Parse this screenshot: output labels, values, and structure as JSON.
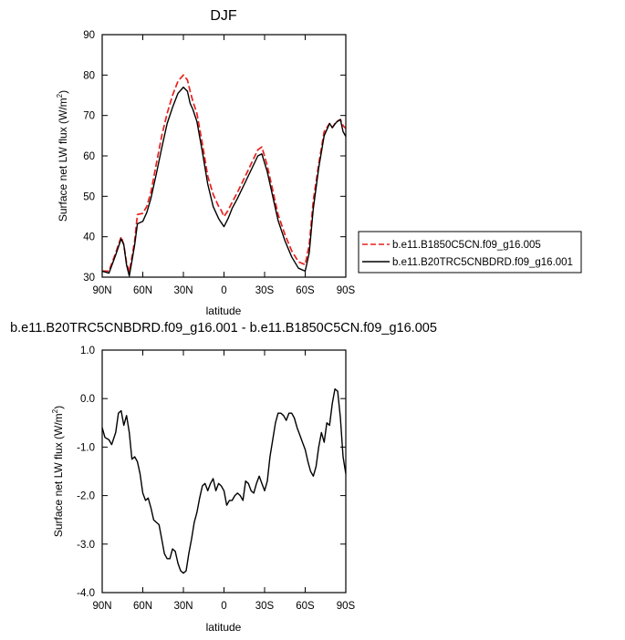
{
  "chart_data": [
    {
      "type": "line",
      "title": "DJF",
      "xlabel": "latitude",
      "ylabel": "Surface net LW flux (W/m",
      "ylabel_sup": "2",
      "ylabel_close": ")",
      "xlim": [
        90,
        -90
      ],
      "ylim": [
        30,
        90
      ],
      "x_tick_values": [
        90,
        60,
        30,
        0,
        -30,
        -60,
        -90
      ],
      "x_tick_labels": [
        "90N",
        "60N",
        "30N",
        "0",
        "30S",
        "60S",
        "90S"
      ],
      "y_tick_values": [
        30,
        40,
        50,
        60,
        70,
        80,
        90
      ],
      "y_tick_labels": [
        "30",
        "40",
        "50",
        "60",
        "70",
        "80",
        "90"
      ],
      "legend": "outside-right",
      "x": [
        90,
        85,
        80,
        76,
        74,
        72,
        70,
        68,
        66,
        64,
        60,
        57,
        54,
        50,
        46,
        42,
        38,
        34,
        30,
        27,
        25,
        23,
        20,
        16,
        12,
        8,
        4,
        2,
        0,
        -3,
        -6,
        -10,
        -15,
        -20,
        -25,
        -28,
        -32,
        -36,
        -40,
        -45,
        -50,
        -55,
        -60,
        -63,
        -66,
        -70,
        -74,
        -78,
        -80,
        -83,
        -86,
        -88,
        -90
      ],
      "series": [
        {
          "name": "b.e11.B1850C5CN.f09_g16.005",
          "color": "#e8201d",
          "dash": true,
          "values": [
            31.5,
            31.5,
            36,
            40,
            38,
            33.5,
            31.3,
            35,
            39,
            45.5,
            45.8,
            47.5,
            51,
            58,
            65,
            70.5,
            75,
            78.5,
            80,
            78.8,
            76,
            73.5,
            70.5,
            63,
            55,
            50.5,
            47.5,
            46.5,
            45,
            46.5,
            48.5,
            51,
            54.5,
            58,
            61.5,
            62.2,
            57.5,
            51.5,
            45.5,
            40.5,
            36.5,
            33.8,
            33.1,
            38,
            49,
            58,
            66,
            68,
            67,
            68.5,
            69,
            67.5,
            66.8
          ]
        },
        {
          "name": "b.e11.B20TRC5CNBDRD.f09_g16.001",
          "color": "#000000",
          "dash": false,
          "values": [
            31.5,
            31,
            35.5,
            39.5,
            38,
            33,
            30.3,
            34,
            38,
            43.2,
            43.8,
            46,
            49.5,
            55.5,
            62,
            68,
            72,
            75.5,
            77,
            76,
            73,
            71.5,
            68.5,
            61,
            53,
            47.5,
            44.5,
            43.5,
            42.5,
            44.5,
            47,
            49.5,
            53,
            56.5,
            60,
            60.5,
            56,
            50,
            44,
            39,
            35,
            32.2,
            31.5,
            36,
            47,
            57,
            65,
            68,
            67,
            68.3,
            69,
            66,
            64.8
          ]
        }
      ]
    },
    {
      "type": "line",
      "title": "b.e11.B20TRC5CNBDRD.f09_g16.001 - b.e11.B1850C5CN.f09_g16.005",
      "xlabel": "latitude",
      "ylabel": "Surface net LW flux (W/m",
      "ylabel_sup": "2",
      "ylabel_close": ")",
      "xlim": [
        90,
        -90
      ],
      "ylim": [
        -4,
        1
      ],
      "x_tick_values": [
        90,
        60,
        30,
        0,
        -30,
        -60,
        -90
      ],
      "x_tick_labels": [
        "90N",
        "60N",
        "30N",
        "0",
        "30S",
        "60S",
        "90S"
      ],
      "y_tick_values": [
        -4,
        -3,
        -2,
        -1,
        0,
        1
      ],
      "y_tick_labels": [
        "-4.0",
        "-3.0",
        "-2.0",
        "-1.0",
        "0.0",
        "1.0"
      ],
      "x": [
        90,
        88,
        85,
        83,
        80,
        78,
        76,
        74,
        72,
        70,
        68,
        66,
        64,
        62,
        60,
        58,
        56,
        54,
        52,
        50,
        48,
        46,
        44,
        42,
        40,
        38,
        36,
        34,
        32,
        30,
        28,
        26,
        24,
        22,
        20,
        18,
        16,
        14,
        12,
        10,
        8,
        6,
        4,
        2,
        0,
        -2,
        -4,
        -6,
        -8,
        -10,
        -12,
        -14,
        -16,
        -18,
        -20,
        -22,
        -24,
        -26,
        -28,
        -30,
        -32,
        -34,
        -36,
        -38,
        -40,
        -42,
        -44,
        -46,
        -48,
        -50,
        -52,
        -54,
        -56,
        -58,
        -60,
        -62,
        -64,
        -66,
        -68,
        -70,
        -72,
        -74,
        -76,
        -78,
        -80,
        -82,
        -84,
        -86,
        -88,
        -90
      ],
      "series": [
        {
          "name": "",
          "color": "#000000",
          "dash": false,
          "values": [
            -0.6,
            -0.8,
            -0.85,
            -0.95,
            -0.7,
            -0.3,
            -0.25,
            -0.55,
            -0.35,
            -0.7,
            -1.25,
            -1.2,
            -1.3,
            -1.55,
            -1.95,
            -2.1,
            -2.05,
            -2.25,
            -2.5,
            -2.55,
            -2.6,
            -2.9,
            -3.2,
            -3.3,
            -3.3,
            -3.1,
            -3.15,
            -3.4,
            -3.55,
            -3.6,
            -3.55,
            -3.2,
            -2.9,
            -2.55,
            -2.35,
            -2.05,
            -1.8,
            -1.75,
            -1.9,
            -1.75,
            -1.65,
            -1.9,
            -1.75,
            -1.8,
            -1.9,
            -2.2,
            -2.1,
            -2.1,
            -2.0,
            -1.95,
            -2.0,
            -2.1,
            -1.7,
            -1.75,
            -1.9,
            -1.95,
            -1.75,
            -1.6,
            -1.75,
            -1.9,
            -1.7,
            -1.2,
            -0.85,
            -0.5,
            -0.3,
            -0.3,
            -0.35,
            -0.45,
            -0.3,
            -0.3,
            -0.4,
            -0.6,
            -0.75,
            -0.9,
            -1.05,
            -1.3,
            -1.5,
            -1.6,
            -1.4,
            -1.0,
            -0.7,
            -0.9,
            -0.5,
            -0.55,
            -0.1,
            0.2,
            0.15,
            -0.4,
            -1.2,
            -1.55
          ]
        }
      ]
    }
  ]
}
